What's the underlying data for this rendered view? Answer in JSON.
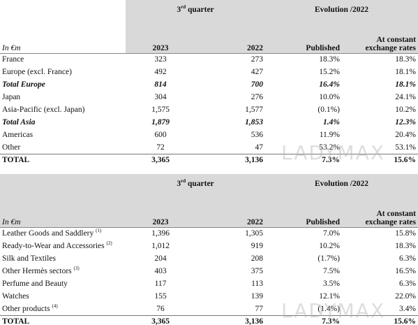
{
  "watermark": "LADYMAX",
  "geo": {
    "period_label": "3",
    "period_sup": "rd",
    "period_suffix": " quarter",
    "evolution_label": "Evolution /2022",
    "unit_label": "In €m",
    "col_2023": "2023",
    "col_2022": "2022",
    "col_published": "Published",
    "col_constant_1": "At constant",
    "col_constant_2": "exchange rates",
    "rows": [
      {
        "label": "France",
        "y2023": "323",
        "y2022": "273",
        "published": "18.3%",
        "constant": "18.3%"
      },
      {
        "label": "Europe (excl. France)",
        "y2023": "492",
        "y2022": "427",
        "published": "15.2%",
        "constant": "18.1%"
      },
      {
        "label": "Total Europe",
        "y2023": "814",
        "y2022": "700",
        "published": "16.4%",
        "constant": "18.1%"
      },
      {
        "label": "Japan",
        "y2023": "304",
        "y2022": "276",
        "published": "10.0%",
        "constant": "24.1%"
      },
      {
        "label": "Asia-Pacific (excl. Japan)",
        "y2023": "1,575",
        "y2022": "1,577",
        "published": "(0.1%)",
        "constant": "10.2%"
      },
      {
        "label": "Total Asia",
        "y2023": "1,879",
        "y2022": "1,853",
        "published": "1.4%",
        "constant": "12.3%"
      },
      {
        "label": "Americas",
        "y2023": "600",
        "y2022": "536",
        "published": "11.9%",
        "constant": "20.4%"
      },
      {
        "label": "Other",
        "y2023": "72",
        "y2022": "47",
        "published": "53.2%",
        "constant": "53.1%"
      },
      {
        "label": "TOTAL",
        "y2023": "3,365",
        "y2022": "3,136",
        "published": "7.3%",
        "constant": "15.6%"
      }
    ]
  },
  "sectors": {
    "period_label": "3",
    "period_sup": "rd",
    "period_suffix": " quarter",
    "evolution_label": "Evolution /2022",
    "unit_label": "In €m",
    "col_2023": "2023",
    "col_2022": "2022",
    "col_published": "Published",
    "col_constant_1": "At constant",
    "col_constant_2": "exchange rates",
    "rows": [
      {
        "label": "Leather Goods and Saddlery",
        "note": "(1)",
        "y2023": "1,396",
        "y2022": "1,305",
        "published": "7.0%",
        "constant": "15.8%"
      },
      {
        "label": "Ready-to-Wear and Accessories",
        "note": "(2)",
        "y2023": "1,012",
        "y2022": "919",
        "published": "10.2%",
        "constant": "18.3%"
      },
      {
        "label": "Silk and Textiles",
        "note": "",
        "y2023": "204",
        "y2022": "208",
        "published": "(1.7%)",
        "constant": "6.3%"
      },
      {
        "label": "Other Hermès sectors",
        "note": "(3)",
        "y2023": "403",
        "y2022": "375",
        "published": "7.5%",
        "constant": "16.5%"
      },
      {
        "label": "Perfume and Beauty",
        "note": "",
        "y2023": "117",
        "y2022": "113",
        "published": "3.5%",
        "constant": "6.3%"
      },
      {
        "label": "Watches",
        "note": "",
        "y2023": "155",
        "y2022": "139",
        "published": "12.1%",
        "constant": "22.0%"
      },
      {
        "label": "Other products",
        "note": "(4)",
        "y2023": "76",
        "y2022": "77",
        "published": "(1.4%)",
        "constant": "3.4%"
      },
      {
        "label": "TOTAL",
        "note": "",
        "y2023": "3,365",
        "y2022": "3,136",
        "published": "7.3%",
        "constant": "15.6%"
      }
    ]
  }
}
